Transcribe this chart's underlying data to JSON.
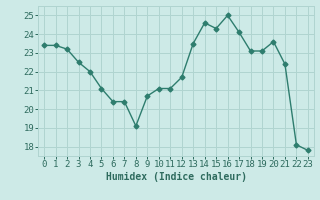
{
  "x": [
    0,
    1,
    2,
    3,
    4,
    5,
    6,
    7,
    8,
    9,
    10,
    11,
    12,
    13,
    14,
    15,
    16,
    17,
    18,
    19,
    20,
    21,
    22,
    23
  ],
  "y": [
    23.4,
    23.4,
    23.2,
    22.5,
    22.0,
    21.1,
    20.4,
    20.4,
    19.1,
    20.7,
    21.1,
    21.1,
    21.7,
    23.5,
    24.6,
    24.3,
    25.0,
    24.1,
    23.1,
    23.1,
    23.6,
    22.4,
    18.1,
    17.8
  ],
  "line_color": "#2e7d6e",
  "marker": "D",
  "marker_size": 2.5,
  "bg_color": "#cdeae7",
  "grid_color": "#b0d4d0",
  "xlabel": "Humidex (Indice chaleur)",
  "xlim": [
    -0.5,
    23.5
  ],
  "ylim": [
    17.5,
    25.5
  ],
  "yticks": [
    18,
    19,
    20,
    21,
    22,
    23,
    24,
    25
  ],
  "xticks": [
    0,
    1,
    2,
    3,
    4,
    5,
    6,
    7,
    8,
    9,
    10,
    11,
    12,
    13,
    14,
    15,
    16,
    17,
    18,
    19,
    20,
    21,
    22,
    23
  ],
  "text_color": "#2e6b5e",
  "label_fontsize": 7,
  "tick_fontsize": 6.5
}
